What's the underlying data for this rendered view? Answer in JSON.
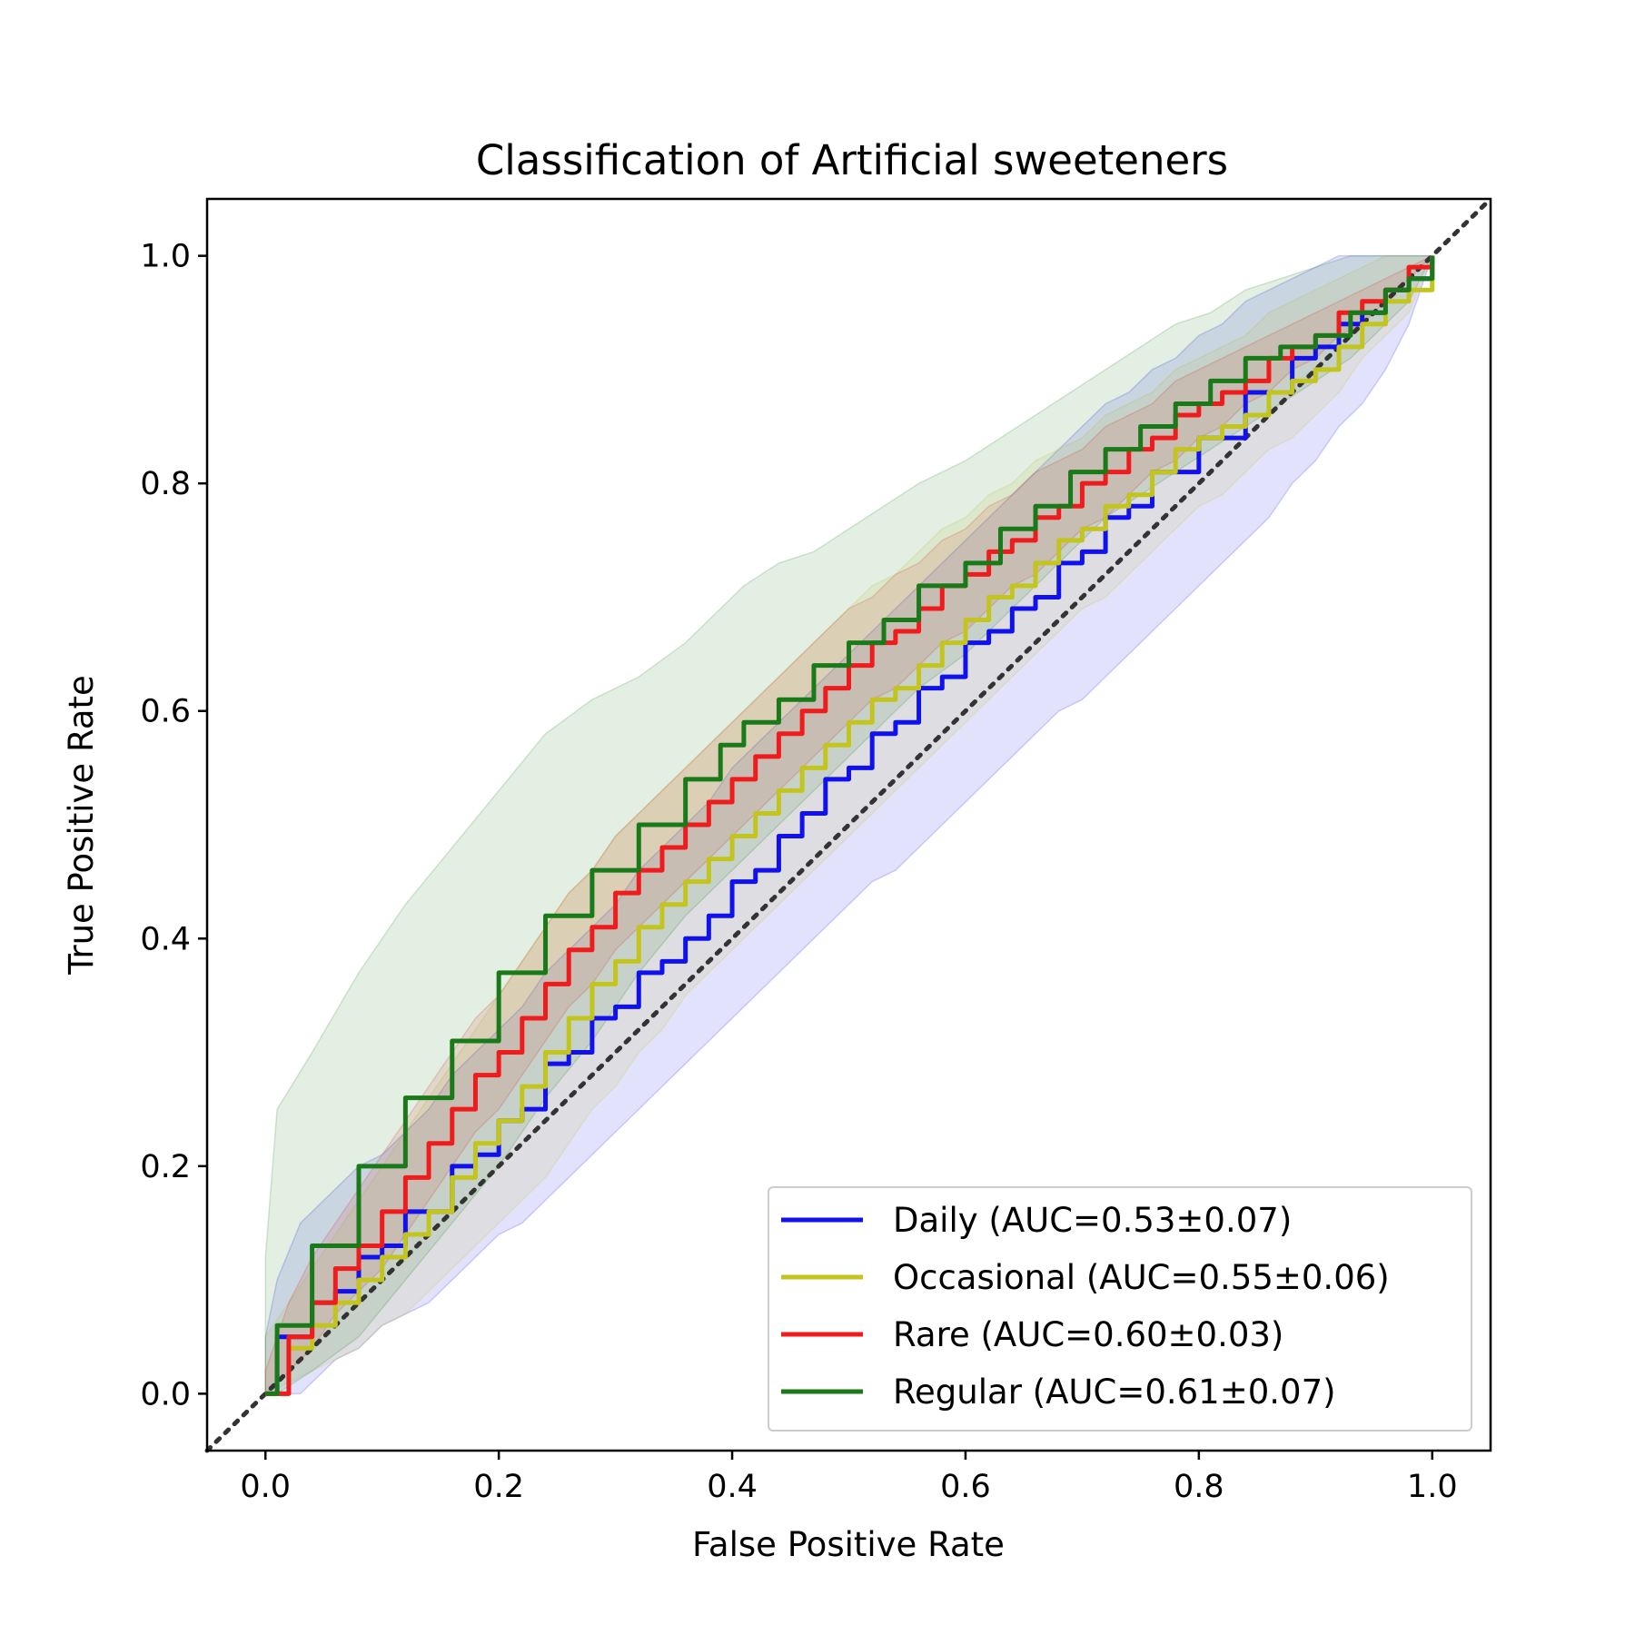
{
  "chart_data": {
    "type": "line",
    "title": "Classification of Artificial sweeteners",
    "xlabel": "False Positive Rate",
    "ylabel": "True Positive Rate",
    "xlim": [
      -0.05,
      1.05
    ],
    "ylim": [
      -0.05,
      1.05
    ],
    "xticks": [
      "0.0",
      "0.2",
      "0.4",
      "0.6",
      "0.8",
      "1.0"
    ],
    "yticks": [
      "0.0",
      "0.2",
      "0.4",
      "0.6",
      "0.8",
      "1.0"
    ],
    "grid": false,
    "legend_position": "lower-right",
    "chance_line": {
      "x": [
        -0.05,
        1.05
      ],
      "y": [
        -0.05,
        1.05
      ],
      "color": "#333333",
      "style": "dotted"
    },
    "series": [
      {
        "name": "Daily (AUC=0.53±0.07)",
        "color": "#1111ee",
        "x": [
          0.0,
          0.01,
          0.03,
          0.04,
          0.06,
          0.08,
          0.1,
          0.12,
          0.14,
          0.16,
          0.18,
          0.2,
          0.22,
          0.24,
          0.26,
          0.28,
          0.3,
          0.32,
          0.34,
          0.36,
          0.38,
          0.4,
          0.42,
          0.44,
          0.46,
          0.48,
          0.5,
          0.52,
          0.54,
          0.56,
          0.58,
          0.6,
          0.62,
          0.64,
          0.66,
          0.68,
          0.7,
          0.72,
          0.74,
          0.76,
          0.78,
          0.8,
          0.82,
          0.84,
          0.86,
          0.88,
          0.9,
          0.92,
          0.94,
          0.96,
          0.98,
          1.0
        ],
        "y": [
          0.0,
          0.05,
          0.05,
          0.08,
          0.09,
          0.12,
          0.13,
          0.16,
          0.16,
          0.2,
          0.21,
          0.24,
          0.25,
          0.29,
          0.3,
          0.33,
          0.34,
          0.37,
          0.38,
          0.4,
          0.42,
          0.45,
          0.46,
          0.49,
          0.51,
          0.54,
          0.55,
          0.58,
          0.59,
          0.62,
          0.63,
          0.66,
          0.67,
          0.69,
          0.7,
          0.73,
          0.74,
          0.77,
          0.78,
          0.81,
          0.81,
          0.84,
          0.84,
          0.88,
          0.88,
          0.91,
          0.92,
          0.94,
          0.95,
          0.97,
          0.98,
          1.0
        ],
        "band_upper": [
          0.05,
          0.1,
          0.15,
          0.16,
          0.18,
          0.2,
          0.21,
          0.23,
          0.25,
          0.28,
          0.3,
          0.32,
          0.34,
          0.37,
          0.39,
          0.41,
          0.43,
          0.46,
          0.48,
          0.5,
          0.52,
          0.55,
          0.57,
          0.59,
          0.61,
          0.63,
          0.65,
          0.67,
          0.69,
          0.71,
          0.73,
          0.75,
          0.77,
          0.79,
          0.81,
          0.83,
          0.85,
          0.87,
          0.88,
          0.9,
          0.91,
          0.93,
          0.94,
          0.96,
          0.97,
          0.98,
          0.99,
          1.0,
          1.0,
          1.0,
          1.0,
          1.0
        ],
        "band_lower": [
          0.0,
          0.0,
          0.0,
          0.01,
          0.03,
          0.04,
          0.06,
          0.07,
          0.08,
          0.1,
          0.12,
          0.14,
          0.15,
          0.17,
          0.19,
          0.21,
          0.23,
          0.25,
          0.27,
          0.29,
          0.31,
          0.33,
          0.35,
          0.37,
          0.39,
          0.41,
          0.43,
          0.45,
          0.46,
          0.48,
          0.5,
          0.52,
          0.54,
          0.56,
          0.58,
          0.6,
          0.61,
          0.63,
          0.65,
          0.67,
          0.69,
          0.71,
          0.73,
          0.75,
          0.77,
          0.8,
          0.82,
          0.85,
          0.87,
          0.9,
          0.94,
          1.0
        ]
      },
      {
        "name": "Occasional (AUC=0.55±0.06)",
        "color": "#c4c41e",
        "x": [
          0.0,
          0.02,
          0.04,
          0.06,
          0.08,
          0.1,
          0.12,
          0.14,
          0.16,
          0.18,
          0.2,
          0.22,
          0.24,
          0.26,
          0.28,
          0.3,
          0.32,
          0.34,
          0.36,
          0.38,
          0.4,
          0.42,
          0.44,
          0.46,
          0.48,
          0.5,
          0.52,
          0.54,
          0.56,
          0.58,
          0.6,
          0.62,
          0.64,
          0.66,
          0.68,
          0.7,
          0.72,
          0.74,
          0.76,
          0.78,
          0.8,
          0.82,
          0.84,
          0.86,
          0.88,
          0.9,
          0.92,
          0.94,
          0.96,
          0.98,
          1.0
        ],
        "y": [
          0.0,
          0.04,
          0.06,
          0.08,
          0.1,
          0.12,
          0.14,
          0.16,
          0.19,
          0.22,
          0.24,
          0.27,
          0.3,
          0.33,
          0.36,
          0.38,
          0.41,
          0.43,
          0.45,
          0.47,
          0.49,
          0.51,
          0.53,
          0.55,
          0.57,
          0.59,
          0.61,
          0.62,
          0.64,
          0.66,
          0.68,
          0.7,
          0.71,
          0.73,
          0.75,
          0.76,
          0.78,
          0.79,
          0.81,
          0.83,
          0.84,
          0.85,
          0.86,
          0.88,
          0.89,
          0.9,
          0.92,
          0.94,
          0.96,
          0.97,
          1.0
        ],
        "band_upper": [
          0.05,
          0.08,
          0.11,
          0.14,
          0.17,
          0.2,
          0.23,
          0.26,
          0.29,
          0.32,
          0.35,
          0.38,
          0.41,
          0.44,
          0.46,
          0.49,
          0.51,
          0.53,
          0.55,
          0.57,
          0.59,
          0.61,
          0.63,
          0.65,
          0.67,
          0.69,
          0.71,
          0.72,
          0.74,
          0.76,
          0.77,
          0.79,
          0.8,
          0.82,
          0.83,
          0.84,
          0.86,
          0.87,
          0.88,
          0.9,
          0.91,
          0.92,
          0.93,
          0.95,
          0.96,
          0.97,
          0.98,
          0.99,
          1.0,
          1.0,
          1.0
        ],
        "band_lower": [
          0.0,
          0.01,
          0.02,
          0.03,
          0.04,
          0.06,
          0.07,
          0.09,
          0.11,
          0.13,
          0.15,
          0.17,
          0.19,
          0.22,
          0.25,
          0.27,
          0.3,
          0.32,
          0.35,
          0.37,
          0.39,
          0.41,
          0.43,
          0.45,
          0.47,
          0.49,
          0.51,
          0.53,
          0.55,
          0.57,
          0.59,
          0.61,
          0.63,
          0.65,
          0.67,
          0.69,
          0.7,
          0.72,
          0.74,
          0.76,
          0.78,
          0.79,
          0.81,
          0.83,
          0.84,
          0.86,
          0.88,
          0.91,
          0.93,
          0.95,
          1.0
        ]
      },
      {
        "name": "Rare (AUC=0.60±0.03)",
        "color": "#ee1c1c",
        "x": [
          0.0,
          0.02,
          0.04,
          0.06,
          0.08,
          0.1,
          0.12,
          0.14,
          0.16,
          0.18,
          0.2,
          0.22,
          0.24,
          0.26,
          0.28,
          0.3,
          0.32,
          0.34,
          0.36,
          0.38,
          0.4,
          0.42,
          0.44,
          0.46,
          0.48,
          0.5,
          0.52,
          0.54,
          0.56,
          0.58,
          0.6,
          0.62,
          0.64,
          0.66,
          0.68,
          0.7,
          0.72,
          0.74,
          0.76,
          0.78,
          0.8,
          0.82,
          0.84,
          0.86,
          0.88,
          0.9,
          0.92,
          0.94,
          0.96,
          0.98,
          1.0
        ],
        "y": [
          0.0,
          0.05,
          0.08,
          0.11,
          0.13,
          0.16,
          0.19,
          0.22,
          0.25,
          0.28,
          0.3,
          0.33,
          0.36,
          0.39,
          0.41,
          0.44,
          0.46,
          0.48,
          0.5,
          0.52,
          0.54,
          0.56,
          0.58,
          0.6,
          0.62,
          0.64,
          0.66,
          0.67,
          0.69,
          0.71,
          0.72,
          0.74,
          0.75,
          0.77,
          0.78,
          0.8,
          0.81,
          0.83,
          0.84,
          0.86,
          0.87,
          0.88,
          0.89,
          0.91,
          0.92,
          0.93,
          0.95,
          0.96,
          0.97,
          0.99,
          1.0
        ],
        "band_upper": [
          0.02,
          0.08,
          0.12,
          0.15,
          0.18,
          0.21,
          0.24,
          0.27,
          0.3,
          0.33,
          0.35,
          0.38,
          0.41,
          0.44,
          0.46,
          0.49,
          0.51,
          0.53,
          0.55,
          0.57,
          0.59,
          0.61,
          0.63,
          0.65,
          0.67,
          0.69,
          0.7,
          0.72,
          0.73,
          0.75,
          0.76,
          0.78,
          0.79,
          0.81,
          0.82,
          0.83,
          0.85,
          0.86,
          0.87,
          0.89,
          0.9,
          0.91,
          0.92,
          0.93,
          0.94,
          0.95,
          0.96,
          0.97,
          0.98,
          0.99,
          1.0
        ],
        "band_lower": [
          0.0,
          0.02,
          0.04,
          0.07,
          0.09,
          0.11,
          0.14,
          0.17,
          0.2,
          0.23,
          0.25,
          0.28,
          0.31,
          0.34,
          0.36,
          0.39,
          0.41,
          0.43,
          0.45,
          0.47,
          0.49,
          0.51,
          0.53,
          0.55,
          0.57,
          0.59,
          0.61,
          0.62,
          0.64,
          0.66,
          0.67,
          0.69,
          0.71,
          0.72,
          0.74,
          0.76,
          0.77,
          0.79,
          0.81,
          0.82,
          0.84,
          0.85,
          0.87,
          0.88,
          0.9,
          0.91,
          0.93,
          0.94,
          0.96,
          0.98,
          1.0
        ]
      },
      {
        "name": "Regular (AUC=0.61±0.07)",
        "color": "#1a7a1a",
        "x": [
          0.0,
          0.01,
          0.04,
          0.08,
          0.12,
          0.16,
          0.2,
          0.24,
          0.28,
          0.32,
          0.36,
          0.39,
          0.41,
          0.44,
          0.47,
          0.5,
          0.53,
          0.56,
          0.6,
          0.63,
          0.66,
          0.69,
          0.72,
          0.75,
          0.78,
          0.81,
          0.84,
          0.87,
          0.9,
          0.93,
          0.96,
          0.98,
          1.0
        ],
        "y": [
          0.0,
          0.06,
          0.13,
          0.2,
          0.26,
          0.31,
          0.37,
          0.42,
          0.46,
          0.5,
          0.54,
          0.57,
          0.59,
          0.61,
          0.64,
          0.66,
          0.68,
          0.71,
          0.73,
          0.76,
          0.78,
          0.81,
          0.83,
          0.85,
          0.87,
          0.89,
          0.91,
          0.92,
          0.93,
          0.95,
          0.97,
          0.98,
          1.0
        ],
        "band_upper": [
          0.12,
          0.25,
          0.3,
          0.37,
          0.43,
          0.48,
          0.53,
          0.58,
          0.61,
          0.63,
          0.66,
          0.69,
          0.71,
          0.73,
          0.74,
          0.76,
          0.78,
          0.8,
          0.82,
          0.84,
          0.86,
          0.88,
          0.9,
          0.92,
          0.94,
          0.95,
          0.97,
          0.98,
          0.99,
          1.0,
          1.0,
          1.0,
          1.0
        ],
        "band_lower": [
          0.0,
          0.0,
          0.02,
          0.05,
          0.1,
          0.15,
          0.2,
          0.26,
          0.31,
          0.37,
          0.42,
          0.45,
          0.47,
          0.5,
          0.53,
          0.56,
          0.59,
          0.62,
          0.65,
          0.68,
          0.71,
          0.74,
          0.77,
          0.79,
          0.81,
          0.83,
          0.85,
          0.87,
          0.89,
          0.91,
          0.94,
          0.96,
          1.0
        ]
      }
    ]
  }
}
